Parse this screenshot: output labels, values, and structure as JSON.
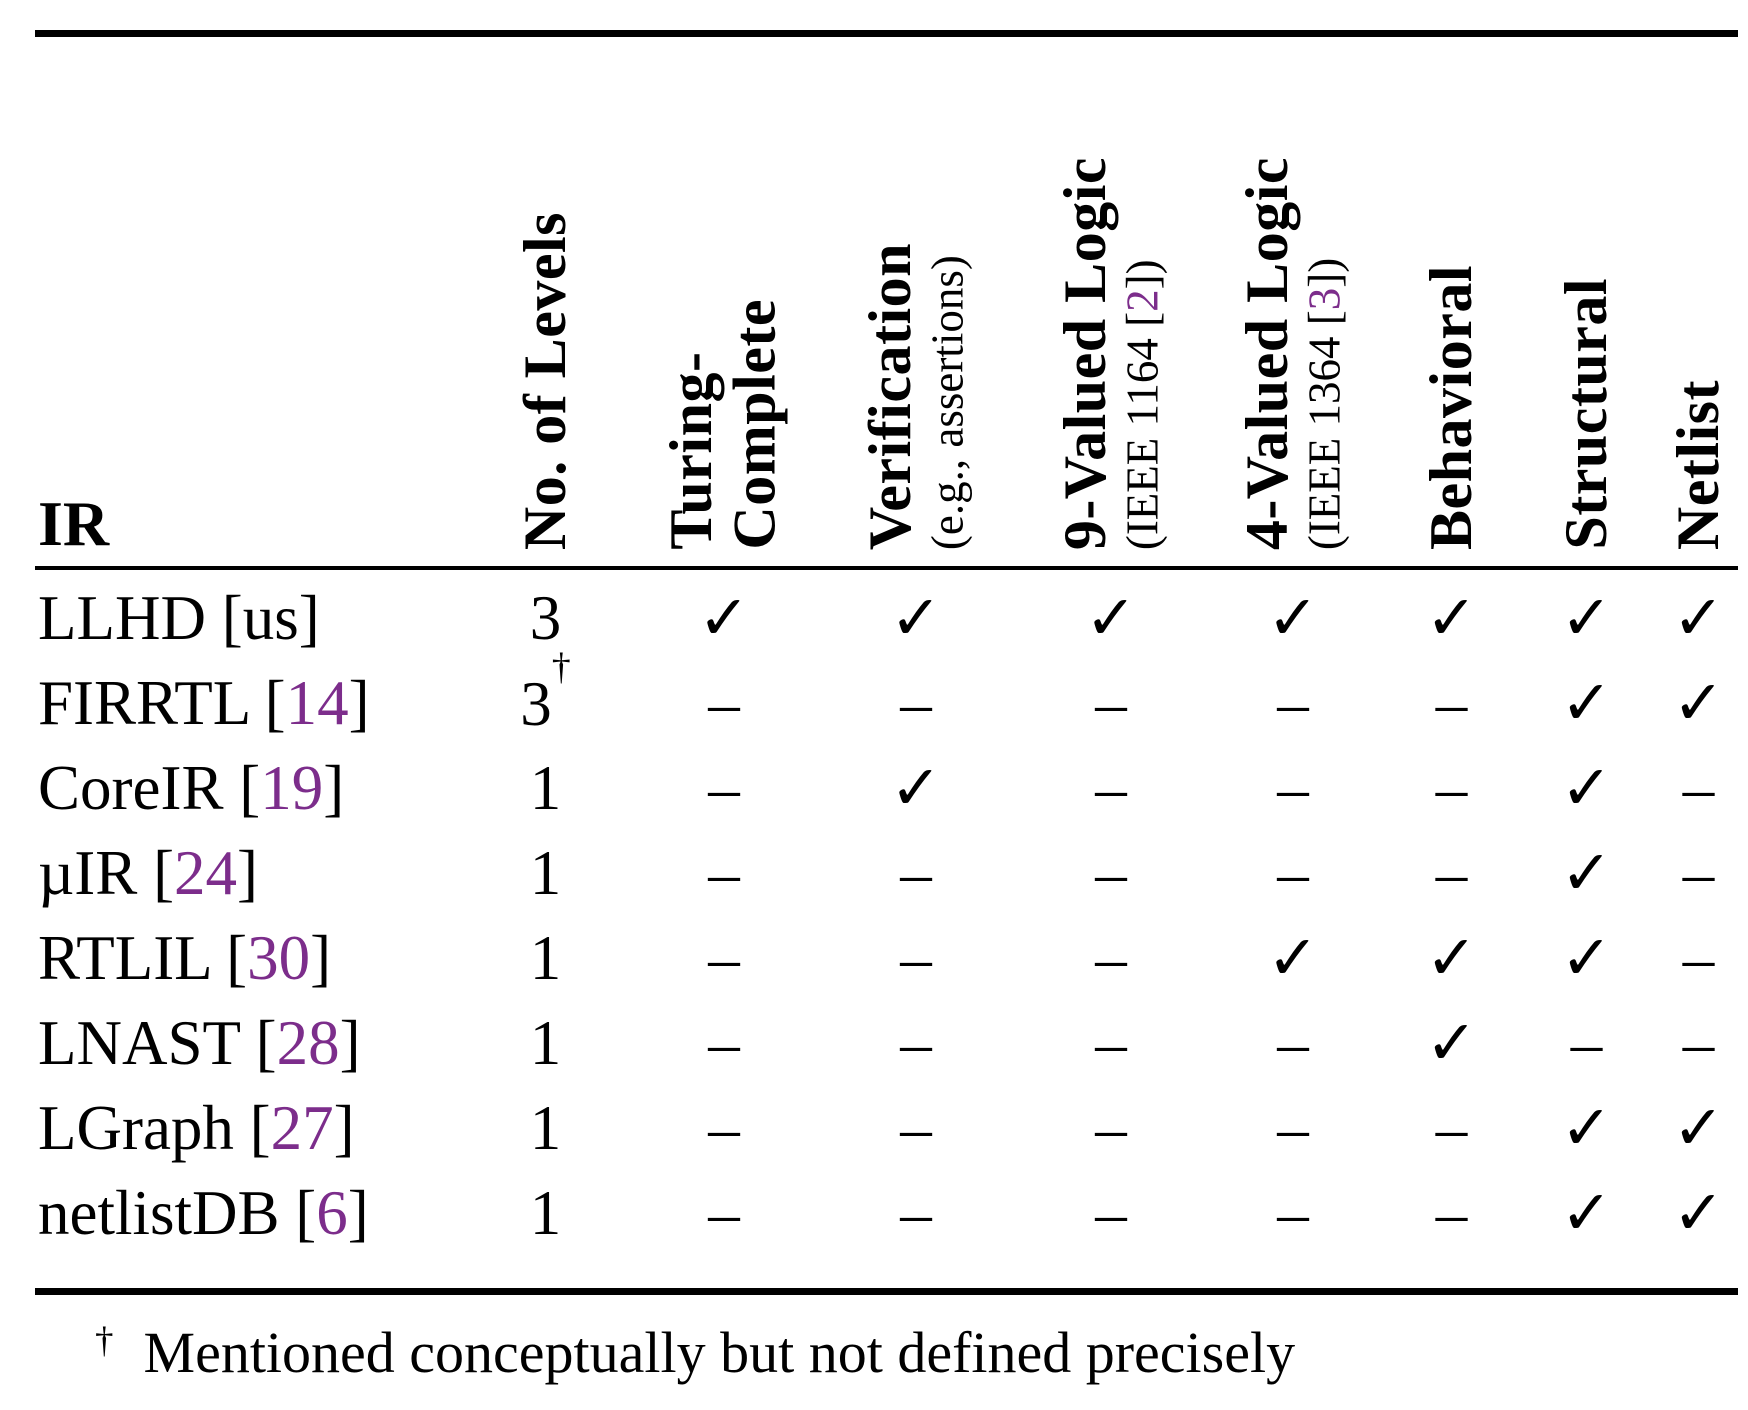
{
  "colors": {
    "text": "#000000",
    "citation": "#7c2d8b",
    "background": "#ffffff"
  },
  "glyphs": {
    "check": "✓",
    "dash": "–"
  },
  "header": {
    "ir_label": "IR",
    "columns": [
      {
        "id": "levels",
        "main": "No. of Levels"
      },
      {
        "id": "turing",
        "main": "Turing-",
        "main2": "Complete"
      },
      {
        "id": "verification",
        "main": "Verification",
        "sub": "(e.g., assertions)"
      },
      {
        "id": "nine-valued",
        "main": "9-Valued Logic",
        "sub_prefix": "(IEEE 1164 [",
        "sub_ref": "2",
        "sub_suffix": "])"
      },
      {
        "id": "four-valued",
        "main": "4-Valued Logic",
        "sub_prefix": "(IEEE 1364 [",
        "sub_ref": "3",
        "sub_suffix": "])"
      },
      {
        "id": "behavioral",
        "main": "Behavioral"
      },
      {
        "id": "structural",
        "main": "Structural"
      },
      {
        "id": "netlist",
        "main": "Netlist"
      }
    ]
  },
  "cell_columns": [
    "turing",
    "verification",
    "nine-valued",
    "four-valued",
    "behavioral",
    "structural",
    "netlist"
  ],
  "rows": [
    {
      "name": "LLHD",
      "ref": "us",
      "cite": false,
      "levels": "3",
      "levels_note": "",
      "cells": [
        "check",
        "check",
        "check",
        "check",
        "check",
        "check",
        "check"
      ]
    },
    {
      "name": "FIRRTL",
      "ref": "14",
      "cite": true,
      "levels": "3",
      "levels_note": "†",
      "cells": [
        "dash",
        "dash",
        "dash",
        "dash",
        "dash",
        "check",
        "check"
      ]
    },
    {
      "name": "CoreIR",
      "ref": "19",
      "cite": true,
      "levels": "1",
      "levels_note": "",
      "cells": [
        "dash",
        "check",
        "dash",
        "dash",
        "dash",
        "check",
        "dash"
      ]
    },
    {
      "name": "µIR",
      "ref": "24",
      "cite": true,
      "levels": "1",
      "levels_note": "",
      "cells": [
        "dash",
        "dash",
        "dash",
        "dash",
        "dash",
        "check",
        "dash"
      ]
    },
    {
      "name": "RTLIL",
      "ref": "30",
      "cite": true,
      "levels": "1",
      "levels_note": "",
      "cells": [
        "dash",
        "dash",
        "dash",
        "check",
        "check",
        "check",
        "dash"
      ]
    },
    {
      "name": "LNAST",
      "ref": "28",
      "cite": true,
      "levels": "1",
      "levels_note": "",
      "cells": [
        "dash",
        "dash",
        "dash",
        "dash",
        "check",
        "dash",
        "dash"
      ]
    },
    {
      "name": "LGraph",
      "ref": "27",
      "cite": true,
      "levels": "1",
      "levels_note": "",
      "cells": [
        "dash",
        "dash",
        "dash",
        "dash",
        "dash",
        "check",
        "check"
      ]
    },
    {
      "name": "netlistDB",
      "ref": "6",
      "cite": true,
      "levels": "1",
      "levels_note": "",
      "cells": [
        "dash",
        "dash",
        "dash",
        "dash",
        "dash",
        "check",
        "check"
      ]
    }
  ],
  "footnote": {
    "symbol": "†",
    "text": "Mentioned conceptually but not defined precisely"
  }
}
